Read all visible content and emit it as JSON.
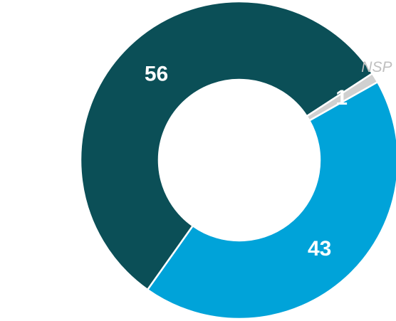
{
  "chart_data": {
    "type": "pie",
    "variant": "donut",
    "title": "",
    "slices": [
      {
        "label": "",
        "value": 43,
        "display": "43",
        "color": "#00A3D9"
      },
      {
        "label": "",
        "value": 56,
        "display": "56",
        "color": "#0B4F57"
      },
      {
        "label": "NSP",
        "value": 1,
        "display": "1",
        "color": "#D0D0D0"
      }
    ]
  }
}
